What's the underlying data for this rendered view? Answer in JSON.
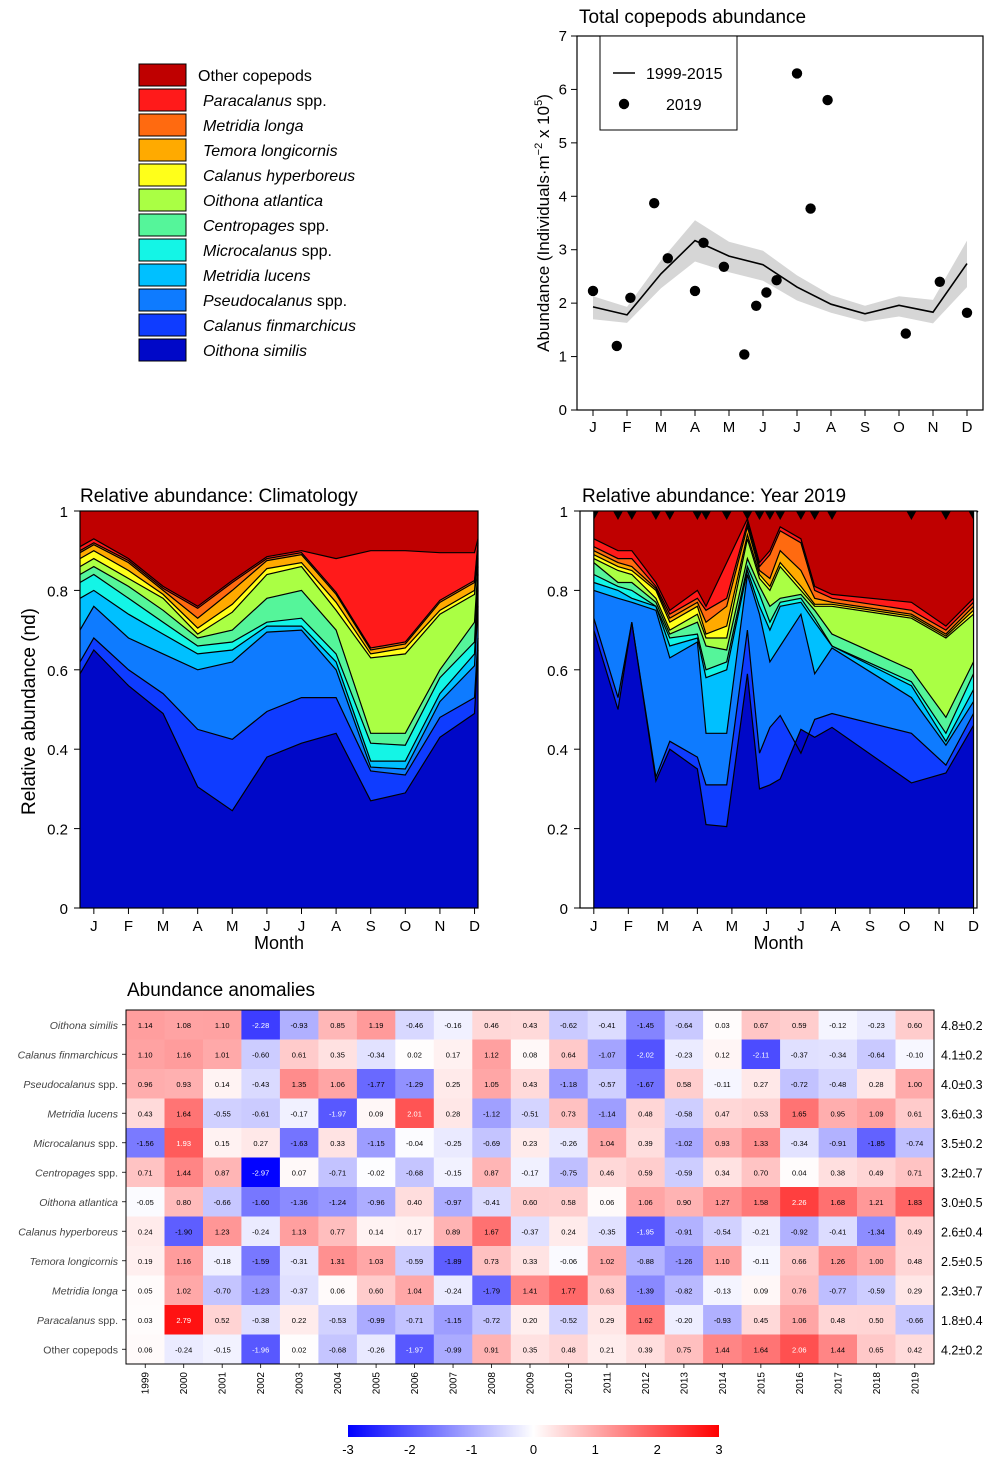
{
  "legend": {
    "items": [
      {
        "label": "Other copepods",
        "italic": false,
        "color": "#BF0000"
      },
      {
        "label": "Paracalanus",
        "suffix": "spp.",
        "italic": true,
        "color": "#FF1A1A"
      },
      {
        "label": "Metridia longa",
        "italic": true,
        "color": "#FF6A10"
      },
      {
        "label": "Temora longicornis",
        "italic": true,
        "color": "#FFAA00"
      },
      {
        "label": "Calanus hyperboreus",
        "italic": true,
        "color": "#FFFF1A"
      },
      {
        "label": "Oithona atlantica",
        "italic": true,
        "color": "#AAFF44"
      },
      {
        "label": "Centropages",
        "suffix": "spp.",
        "italic": true,
        "color": "#55F59A"
      },
      {
        "label": "Microcalanus",
        "suffix": "spp.",
        "italic": true,
        "color": "#14F5E6"
      },
      {
        "label": "Metridia lucens",
        "italic": true,
        "color": "#00C0FF"
      },
      {
        "label": "Pseudocalanus",
        "suffix": "spp.",
        "italic": true,
        "color": "#0E7BFF"
      },
      {
        "label": "Calanus finmarchicus",
        "italic": true,
        "color": "#0F3CFF"
      },
      {
        "label": "Oithona similis",
        "italic": true,
        "color": "#0008C8"
      }
    ]
  },
  "months": [
    "J",
    "F",
    "M",
    "A",
    "M",
    "J",
    "J",
    "A",
    "S",
    "O",
    "N",
    "D"
  ],
  "chart_data": [
    {
      "id": "total",
      "type": "line",
      "title": "Total copepods abundance",
      "ylabel": "Abundance (Individuals·m",
      "ylabel_sup1": "−2",
      "ylabel_mid": " x 10",
      "ylabel_sup2": "5",
      "ylabel_end": ")",
      "ylim": [
        0,
        7
      ],
      "yticks": [
        0,
        1,
        2,
        3,
        4,
        5,
        6,
        7
      ],
      "xlim": [
        1,
        12
      ],
      "legend_position": "top-left",
      "series": [
        {
          "name": "1999-2015",
          "kind": "line",
          "x": [
            1,
            2,
            3,
            4,
            5,
            6,
            7,
            8,
            9,
            10,
            11,
            12
          ],
          "y": [
            1.93,
            1.78,
            2.55,
            3.17,
            2.88,
            2.72,
            2.3,
            1.98,
            1.8,
            1.96,
            1.83,
            2.74
          ],
          "lower": [
            1.7,
            1.63,
            2.28,
            2.78,
            2.58,
            2.42,
            2.05,
            1.82,
            1.65,
            1.75,
            1.62,
            2.3
          ],
          "upper": [
            2.13,
            1.93,
            2.8,
            3.55,
            3.15,
            2.98,
            2.52,
            2.15,
            1.95,
            2.13,
            2.06,
            3.17
          ]
        },
        {
          "name": "2019",
          "kind": "points",
          "x": [
            1.0,
            1.7,
            2.1,
            2.8,
            3.2,
            4.0,
            4.25,
            4.85,
            5.45,
            5.8,
            6.1,
            6.4,
            7.0,
            7.4,
            7.9,
            10.2,
            11.2,
            12.0
          ],
          "y": [
            2.23,
            1.2,
            2.1,
            3.87,
            2.84,
            2.23,
            3.13,
            2.68,
            1.04,
            1.95,
            2.2,
            2.43,
            6.3,
            3.77,
            5.8,
            1.43,
            2.4,
            1.82
          ]
        }
      ]
    },
    {
      "id": "clim",
      "type": "area",
      "title": "Relative abundance: Climatology",
      "xlabel": "Month",
      "ylabel": "Relative abundance (nd)",
      "ylim": [
        0,
        1
      ],
      "yticks": [
        0,
        0.2,
        0.4,
        0.6,
        0.8,
        1
      ],
      "xlim": [
        0.6,
        12.1
      ],
      "x": [
        0.6,
        1,
        2,
        3,
        4,
        5,
        6,
        7,
        8,
        9,
        10,
        11,
        12,
        12.1
      ],
      "cumulative": [
        [
          0.59,
          0.65,
          0.56,
          0.49,
          0.305,
          0.245,
          0.38,
          0.415,
          0.44,
          0.27,
          0.29,
          0.43,
          0.49,
          0.65
        ],
        [
          0.62,
          0.68,
          0.6,
          0.54,
          0.45,
          0.425,
          0.495,
          0.53,
          0.53,
          0.345,
          0.335,
          0.48,
          0.53,
          0.68
        ],
        [
          0.7,
          0.76,
          0.68,
          0.64,
          0.6,
          0.62,
          0.695,
          0.7,
          0.6,
          0.355,
          0.35,
          0.52,
          0.61,
          0.76
        ],
        [
          0.78,
          0.8,
          0.74,
          0.69,
          0.64,
          0.65,
          0.71,
          0.71,
          0.62,
          0.37,
          0.37,
          0.54,
          0.64,
          0.8
        ],
        [
          0.82,
          0.84,
          0.78,
          0.72,
          0.66,
          0.67,
          0.72,
          0.73,
          0.64,
          0.415,
          0.41,
          0.58,
          0.67,
          0.84
        ],
        [
          0.84,
          0.86,
          0.81,
          0.75,
          0.68,
          0.7,
          0.78,
          0.8,
          0.7,
          0.44,
          0.44,
          0.6,
          0.72,
          0.86
        ],
        [
          0.86,
          0.88,
          0.83,
          0.78,
          0.69,
          0.745,
          0.84,
          0.86,
          0.75,
          0.63,
          0.64,
          0.74,
          0.79,
          0.88
        ],
        [
          0.88,
          0.9,
          0.85,
          0.79,
          0.705,
          0.765,
          0.855,
          0.87,
          0.77,
          0.64,
          0.655,
          0.75,
          0.8,
          0.9
        ],
        [
          0.895,
          0.915,
          0.87,
          0.8,
          0.73,
          0.8,
          0.875,
          0.89,
          0.79,
          0.65,
          0.665,
          0.77,
          0.82,
          0.915
        ],
        [
          0.9,
          0.92,
          0.875,
          0.805,
          0.755,
          0.82,
          0.88,
          0.895,
          0.795,
          0.655,
          0.67,
          0.775,
          0.825,
          0.92
        ],
        [
          0.91,
          0.93,
          0.88,
          0.81,
          0.76,
          0.825,
          0.885,
          0.9,
          0.88,
          0.9,
          0.9,
          0.895,
          0.895,
          0.93
        ],
        [
          1,
          1,
          1,
          1,
          1,
          1,
          1,
          1,
          1,
          1,
          1,
          1,
          1,
          1
        ]
      ]
    },
    {
      "id": "y2019",
      "type": "area",
      "title": "Relative abundance: Year 2019",
      "xlabel": "Month",
      "ylim": [
        0,
        1
      ],
      "yticks": [
        0,
        0.2,
        0.4,
        0.6,
        0.8,
        1
      ],
      "xlim": [
        0.6,
        12.1
      ],
      "x": [
        1.0,
        1.7,
        2.1,
        2.8,
        3.2,
        4.0,
        4.25,
        4.85,
        5.45,
        5.8,
        6.1,
        6.4,
        7.0,
        7.4,
        7.9,
        10.2,
        11.2,
        12.0
      ],
      "cumulative": [
        [
          0.7,
          0.5,
          0.72,
          0.32,
          0.4,
          0.35,
          0.21,
          0.205,
          0.59,
          0.3,
          0.31,
          0.325,
          0.45,
          0.43,
          0.455,
          0.315,
          0.34,
          0.46
        ],
        [
          0.73,
          0.53,
          0.72,
          0.33,
          0.42,
          0.38,
          0.31,
          0.31,
          0.7,
          0.39,
          0.455,
          0.485,
          0.39,
          0.475,
          0.49,
          0.44,
          0.36,
          0.49
        ],
        [
          0.8,
          0.78,
          0.77,
          0.75,
          0.63,
          0.67,
          0.44,
          0.44,
          0.84,
          0.74,
          0.62,
          0.66,
          0.74,
          0.59,
          0.655,
          0.53,
          0.41,
          0.52
        ],
        [
          0.82,
          0.8,
          0.78,
          0.76,
          0.66,
          0.68,
          0.58,
          0.6,
          0.85,
          0.76,
          0.7,
          0.76,
          0.77,
          0.72,
          0.66,
          0.56,
          0.42,
          0.55
        ],
        [
          0.84,
          0.81,
          0.8,
          0.76,
          0.68,
          0.69,
          0.6,
          0.62,
          0.86,
          0.79,
          0.72,
          0.77,
          0.78,
          0.73,
          0.66,
          0.57,
          0.44,
          0.59
        ],
        [
          0.87,
          0.82,
          0.82,
          0.77,
          0.69,
          0.72,
          0.66,
          0.65,
          0.88,
          0.81,
          0.76,
          0.78,
          0.79,
          0.75,
          0.69,
          0.6,
          0.48,
          0.62
        ],
        [
          0.88,
          0.85,
          0.84,
          0.78,
          0.7,
          0.74,
          0.68,
          0.68,
          0.93,
          0.83,
          0.8,
          0.86,
          0.8,
          0.76,
          0.76,
          0.73,
          0.68,
          0.74
        ],
        [
          0.89,
          0.86,
          0.85,
          0.8,
          0.72,
          0.76,
          0.69,
          0.71,
          0.94,
          0.84,
          0.81,
          0.87,
          0.81,
          0.765,
          0.765,
          0.735,
          0.685,
          0.75
        ],
        [
          0.9,
          0.87,
          0.86,
          0.805,
          0.73,
          0.77,
          0.72,
          0.76,
          0.96,
          0.85,
          0.83,
          0.9,
          0.85,
          0.78,
          0.77,
          0.74,
          0.69,
          0.76
        ],
        [
          0.91,
          0.88,
          0.88,
          0.81,
          0.74,
          0.78,
          0.75,
          0.78,
          0.97,
          0.86,
          0.89,
          0.95,
          0.92,
          0.8,
          0.78,
          0.75,
          0.7,
          0.77
        ],
        [
          0.93,
          0.9,
          0.9,
          0.82,
          0.75,
          0.8,
          0.76,
          0.87,
          0.98,
          0.87,
          0.9,
          0.96,
          0.93,
          0.81,
          0.79,
          0.77,
          0.71,
          0.78
        ],
        [
          1,
          1,
          1,
          1,
          1,
          1,
          1,
          1,
          1,
          1,
          1,
          1,
          1,
          1,
          1,
          1,
          1,
          1
        ]
      ]
    },
    {
      "id": "anomalies",
      "type": "heatmap",
      "title": "Abundance anomalies",
      "years": [
        "1999",
        "2000",
        "2001",
        "2002",
        "2003",
        "2004",
        "2005",
        "2006",
        "2007",
        "2008",
        "2009",
        "2010",
        "2011",
        "2012",
        "2013",
        "2014",
        "2015",
        "2016",
        "2017",
        "2018",
        "2019"
      ],
      "rows": [
        {
          "label": "Oithona similis",
          "mean": "4.8±0.2",
          "values": [
            1.14,
            1.08,
            1.1,
            -2.28,
            -0.93,
            0.85,
            1.19,
            -0.46,
            -0.16,
            0.46,
            0.43,
            -0.62,
            -0.41,
            -1.45,
            -0.64,
            0.03,
            0.67,
            0.59,
            -0.12,
            -0.23,
            0.6
          ]
        },
        {
          "label": "Calanus finmarchicus",
          "mean": "4.1±0.2",
          "values": [
            1.1,
            1.16,
            1.01,
            -0.6,
            0.61,
            0.35,
            -0.34,
            0.02,
            0.17,
            1.12,
            0.08,
            0.64,
            -1.07,
            -2.02,
            -0.23,
            0.12,
            -2.11,
            -0.37,
            -0.34,
            -0.64,
            -0.1
          ]
        },
        {
          "label": "Pseudocalanus spp.",
          "mean": "4.0±0.3",
          "values": [
            0.96,
            0.93,
            0.14,
            -0.43,
            1.35,
            1.06,
            -1.77,
            -1.29,
            0.25,
            1.05,
            0.43,
            -1.18,
            -0.57,
            -1.67,
            0.58,
            -0.11,
            0.27,
            -0.72,
            -0.48,
            0.28,
            1.0
          ]
        },
        {
          "label": "Metridia lucens",
          "mean": "3.6±0.3",
          "values": [
            0.43,
            1.64,
            -0.55,
            -0.61,
            -0.17,
            -1.97,
            0.09,
            2.01,
            0.28,
            -1.12,
            -0.51,
            0.73,
            -1.14,
            0.48,
            -0.58,
            0.47,
            0.53,
            1.65,
            0.95,
            1.09,
            0.61
          ]
        },
        {
          "label": "Microcalanus spp.",
          "mean": "3.5±0.2",
          "values": [
            -1.56,
            1.93,
            0.15,
            0.27,
            -1.63,
            0.33,
            -1.15,
            -0.04,
            -0.25,
            -0.69,
            0.23,
            -0.26,
            1.04,
            0.39,
            -1.02,
            0.93,
            1.33,
            -0.34,
            -0.91,
            -1.85,
            -0.74
          ]
        },
        {
          "label": "Centropages spp.",
          "mean": "3.2±0.7",
          "values": [
            0.71,
            1.44,
            0.87,
            -2.97,
            0.07,
            -0.71,
            -0.02,
            -0.68,
            -0.15,
            0.87,
            -0.17,
            -0.75,
            0.46,
            0.59,
            -0.59,
            0.34,
            0.7,
            0.04,
            0.38,
            0.49,
            0.71
          ]
        },
        {
          "label": "Oithona atlantica",
          "mean": "3.0±0.5",
          "values": [
            -0.05,
            0.8,
            -0.66,
            -1.6,
            -1.36,
            -1.24,
            -0.96,
            0.4,
            -0.97,
            -0.41,
            0.6,
            0.58,
            0.06,
            1.06,
            0.9,
            1.27,
            1.58,
            2.26,
            1.68,
            1.21,
            1.83
          ]
        },
        {
          "label": "Calanus hyperboreus",
          "mean": "2.6±0.4",
          "values": [
            0.24,
            -1.9,
            1.23,
            -0.24,
            1.13,
            0.77,
            0.14,
            0.17,
            0.89,
            1.67,
            -0.37,
            0.24,
            -0.35,
            -1.95,
            -0.91,
            -0.54,
            -0.21,
            -0.92,
            -0.41,
            -1.34,
            0.49
          ]
        },
        {
          "label": "Temora longicornis",
          "mean": "2.5±0.5",
          "values": [
            0.19,
            1.16,
            -0.18,
            -1.59,
            -0.31,
            1.31,
            1.03,
            -0.59,
            -1.89,
            0.73,
            0.33,
            -0.06,
            1.02,
            -0.88,
            -1.26,
            1.1,
            -0.11,
            0.66,
            1.26,
            1.0,
            0.48
          ]
        },
        {
          "label": "Metridia longa",
          "mean": "2.3±0.7",
          "values": [
            0.05,
            1.02,
            -0.7,
            -1.23,
            -0.37,
            0.06,
            0.6,
            1.04,
            -0.24,
            -1.79,
            1.41,
            1.77,
            0.63,
            -1.39,
            -0.82,
            -0.13,
            0.09,
            0.76,
            -0.77,
            -0.59,
            0.29
          ]
        },
        {
          "label": "Paracalanus spp.",
          "mean": "1.8±0.4",
          "values": [
            0.03,
            2.79,
            0.52,
            -0.38,
            0.22,
            -0.53,
            -0.99,
            -0.71,
            -1.15,
            -0.72,
            0.2,
            -0.52,
            0.29,
            1.62,
            -0.2,
            -0.93,
            0.45,
            1.06,
            0.48,
            0.5,
            -0.66
          ]
        },
        {
          "label": "Other copepods",
          "mean": "4.2±0.2",
          "values": [
            0.06,
            -0.24,
            -0.15,
            -1.96,
            0.02,
            -0.68,
            -0.26,
            -1.97,
            -0.99,
            0.91,
            0.35,
            0.48,
            0.21,
            0.39,
            0.75,
            1.44,
            1.64,
            2.06,
            1.44,
            0.65,
            0.42
          ]
        }
      ],
      "colorbar": {
        "ticks": [
          -3,
          -2,
          -1,
          0,
          1,
          2,
          3
        ],
        "low": "#0000FF",
        "mid": "#FFFFFF",
        "high": "#FF0000"
      }
    }
  ]
}
